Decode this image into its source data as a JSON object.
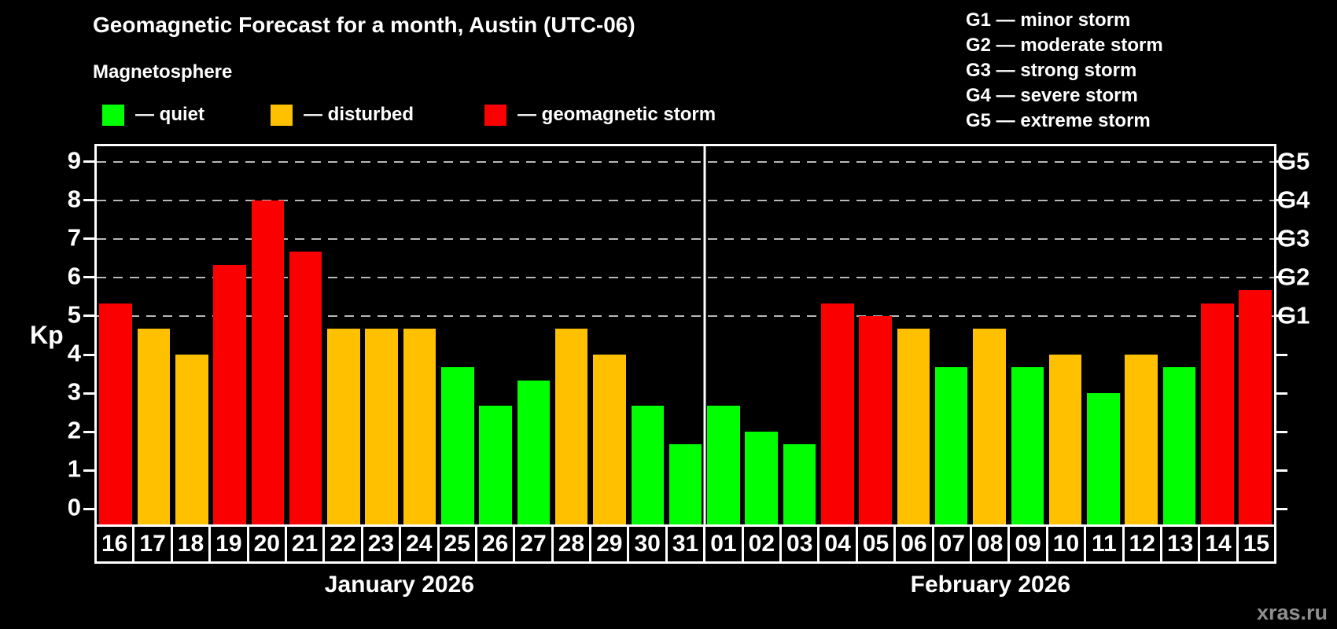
{
  "title": "Geomagnetic Forecast for a month, Austin (UTC-06)",
  "subtitle": "Magnetosphere",
  "legend": {
    "items": [
      {
        "label": "— quiet",
        "status": "quiet"
      },
      {
        "label": "— disturbed",
        "status": "disturbed"
      },
      {
        "label": "— geomagnetic storm",
        "status": "storm"
      }
    ]
  },
  "g_scale": [
    "G1 — minor storm",
    "G2 — moderate storm",
    "G3 — strong storm",
    "G4 — severe storm",
    "G5 — extreme storm"
  ],
  "watermark": "xras.ru",
  "colors": {
    "quiet": "#00ff00",
    "disturbed": "#ffc000",
    "storm": "#fb0000",
    "background": "#000000",
    "grid": "#b8b8b8",
    "axis": "#ffffff",
    "watermark": "#8f8f8f"
  },
  "chart_data": {
    "type": "bar",
    "ylabel": "Kp",
    "y_domain": [
      -0.4,
      9.4
    ],
    "y_ticks": [
      0,
      1,
      2,
      3,
      4,
      5,
      6,
      7,
      8,
      9
    ],
    "gridlines": [
      5,
      6,
      7,
      8,
      9
    ],
    "right_axis_labels": [
      {
        "kp": 5,
        "label": "G1"
      },
      {
        "kp": 6,
        "label": "G2"
      },
      {
        "kp": 7,
        "label": "G3"
      },
      {
        "kp": 8,
        "label": "G4"
      },
      {
        "kp": 9,
        "label": "G5"
      }
    ],
    "sections": [
      {
        "label": "January 2026",
        "days": [
          {
            "day": "16",
            "kp": 5.33,
            "status": "storm"
          },
          {
            "day": "17",
            "kp": 4.67,
            "status": "disturbed"
          },
          {
            "day": "18",
            "kp": 4.0,
            "status": "disturbed"
          },
          {
            "day": "19",
            "kp": 6.33,
            "status": "storm"
          },
          {
            "day": "20",
            "kp": 8.0,
            "status": "storm"
          },
          {
            "day": "21",
            "kp": 6.67,
            "status": "storm"
          },
          {
            "day": "22",
            "kp": 4.67,
            "status": "disturbed"
          },
          {
            "day": "23",
            "kp": 4.67,
            "status": "disturbed"
          },
          {
            "day": "24",
            "kp": 4.67,
            "status": "disturbed"
          },
          {
            "day": "25",
            "kp": 3.67,
            "status": "quiet"
          },
          {
            "day": "26",
            "kp": 2.67,
            "status": "quiet"
          },
          {
            "day": "27",
            "kp": 3.33,
            "status": "quiet"
          },
          {
            "day": "28",
            "kp": 4.67,
            "status": "disturbed"
          },
          {
            "day": "29",
            "kp": 4.0,
            "status": "disturbed"
          },
          {
            "day": "30",
            "kp": 2.67,
            "status": "quiet"
          },
          {
            "day": "31",
            "kp": 1.67,
            "status": "quiet"
          }
        ]
      },
      {
        "label": "February 2026",
        "days": [
          {
            "day": "01",
            "kp": 2.67,
            "status": "quiet"
          },
          {
            "day": "02",
            "kp": 2.0,
            "status": "quiet"
          },
          {
            "day": "03",
            "kp": 1.67,
            "status": "quiet"
          },
          {
            "day": "04",
            "kp": 5.33,
            "status": "storm"
          },
          {
            "day": "05",
            "kp": 5.0,
            "status": "storm"
          },
          {
            "day": "06",
            "kp": 4.67,
            "status": "disturbed"
          },
          {
            "day": "07",
            "kp": 3.67,
            "status": "quiet"
          },
          {
            "day": "08",
            "kp": 4.67,
            "status": "disturbed"
          },
          {
            "day": "09",
            "kp": 3.67,
            "status": "quiet"
          },
          {
            "day": "10",
            "kp": 4.0,
            "status": "disturbed"
          },
          {
            "day": "11",
            "kp": 3.0,
            "status": "quiet"
          },
          {
            "day": "12",
            "kp": 4.0,
            "status": "disturbed"
          },
          {
            "day": "13",
            "kp": 3.67,
            "status": "quiet"
          },
          {
            "day": "14",
            "kp": 5.33,
            "status": "storm"
          },
          {
            "day": "15",
            "kp": 5.67,
            "status": "storm"
          }
        ]
      }
    ]
  }
}
